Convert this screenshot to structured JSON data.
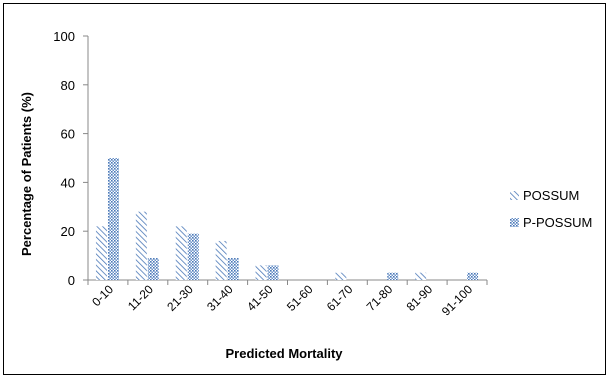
{
  "chart_data": {
    "type": "bar",
    "title": "",
    "xlabel": "Predicted Mortality",
    "ylabel": "Percentage of Patients (%)",
    "ylim": [
      0,
      100
    ],
    "yticks": [
      "0",
      "20",
      "40",
      "60",
      "80",
      "100"
    ],
    "categories": [
      "0-10",
      "11-20",
      "21-30",
      "31-40",
      "41-50",
      "51-60",
      "61-70",
      "71-80",
      "81-90",
      "91-100"
    ],
    "series": [
      {
        "name": "POSSUM",
        "values": [
          22,
          28,
          22,
          16,
          6,
          0,
          3,
          0,
          3,
          0
        ]
      },
      {
        "name": "P-POSSUM",
        "values": [
          50,
          9,
          19,
          9,
          6,
          0,
          0,
          3,
          0,
          3
        ]
      }
    ],
    "grid": false,
    "legend_position": "right"
  }
}
